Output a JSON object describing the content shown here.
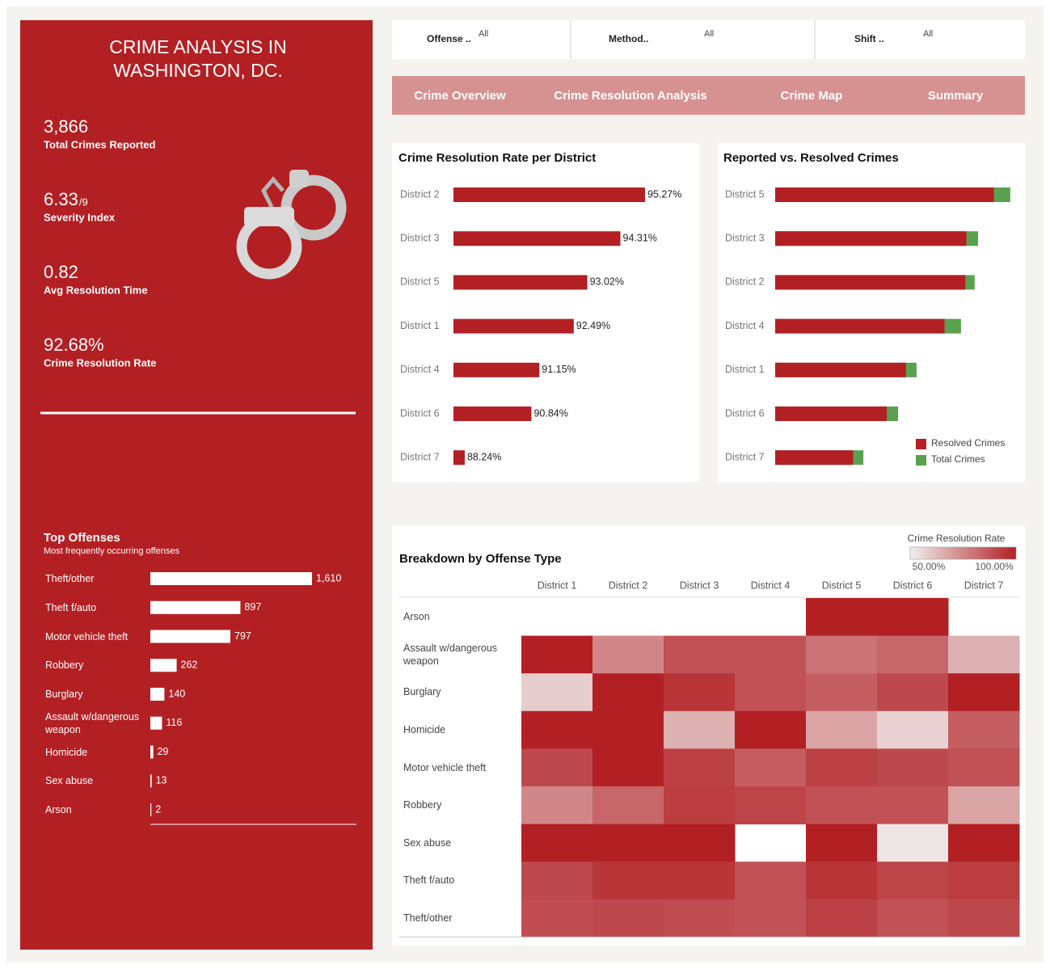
{
  "header": {
    "title_lines": [
      "CRIME ANALYSIS IN",
      "WASHINGTON, DC."
    ]
  },
  "kpis": [
    {
      "value": "3,866",
      "label": "Total Crimes Reported"
    },
    {
      "value": "6.33",
      "suffix": "/9",
      "label": "Severity Index"
    },
    {
      "value": "0.82",
      "label": "Avg Resolution Time"
    },
    {
      "value": "92.68%",
      "label": "Crime Resolution Rate"
    }
  ],
  "filters": [
    {
      "label": "Offense ..",
      "value": "All"
    },
    {
      "label": "Method..",
      "value": "All"
    },
    {
      "label": "Shift ..",
      "value": "All"
    }
  ],
  "tabs": [
    "Crime Overview",
    "Crime Resolution Analysis",
    "Crime Map",
    "Summary"
  ],
  "chart_data": [
    {
      "type": "hbar",
      "title": "Top Offenses",
      "subtitle": "Most frequently occurring offenses",
      "categories": [
        "Theft/other",
        "Theft f/auto",
        "Motor vehicle theft",
        "Robbery",
        "Burglary",
        "Assault w/dangerous weapon",
        "Homicide",
        "Sex abuse",
        "Arson"
      ],
      "values": [
        1610,
        897,
        797,
        262,
        140,
        116,
        29,
        13,
        2
      ],
      "value_labels": [
        "1,610",
        "897",
        "797",
        "262",
        "140",
        "116",
        "29",
        "13",
        "2"
      ],
      "color": "#ffffff"
    },
    {
      "type": "hbar",
      "title": "Crime Resolution Rate per District",
      "categories": [
        "District 2",
        "District 3",
        "District 5",
        "District 1",
        "District 4",
        "District 6",
        "District 7"
      ],
      "values": [
        95.27,
        94.31,
        93.02,
        92.49,
        91.15,
        90.84,
        88.24
      ],
      "value_labels": [
        "95.27%",
        "94.31%",
        "93.02%",
        "92.49%",
        "91.15%",
        "90.84%",
        "88.24%"
      ],
      "xlim": [
        87.8,
        96.5
      ],
      "color": "#b22024"
    },
    {
      "type": "overlay_hbar",
      "title": "Reported vs. Resolved Crimes",
      "categories": [
        "District 5",
        "District 3",
        "District 2",
        "District 4",
        "District 1",
        "District 6",
        "District 7"
      ],
      "series": [
        {
          "name": "Resolved Crimes",
          "color": "#b22024",
          "values": [
            719,
            629,
            625,
            557,
            430,
            367,
            256
          ]
        },
        {
          "name": "Total Crimes",
          "color": "#59a14f",
          "values": [
            773,
            667,
            656,
            611,
            465,
            404,
            290
          ]
        }
      ],
      "xlim": [
        0,
        800
      ],
      "legend": "bottom-right"
    },
    {
      "type": "heatmap",
      "title": "Breakdown by Offense Type",
      "categories": [
        "District 1",
        "District 2",
        "District 3",
        "District 4",
        "District 5",
        "District 6",
        "District 7"
      ],
      "rows": [
        "Arson",
        "Assault w/dangerous weapon",
        "Burglary",
        "Homicide",
        "Motor vehicle theft",
        "Robbery",
        "Sex abuse",
        "Theft f/auto",
        "Theft/other"
      ],
      "values": [
        [
          null,
          null,
          null,
          null,
          100,
          100,
          null
        ],
        [
          100,
          75,
          88,
          88,
          80,
          83,
          65
        ],
        [
          58,
          100,
          95,
          88,
          85,
          90,
          100
        ],
        [
          100,
          100,
          65,
          100,
          68,
          57,
          85
        ],
        [
          90,
          100,
          92,
          85,
          92,
          90,
          88
        ],
        [
          75,
          83,
          93,
          91,
          88,
          88,
          68
        ],
        [
          100,
          100,
          100,
          null,
          100,
          52,
          100
        ],
        [
          90,
          95,
          95,
          88,
          95,
          91,
          93
        ],
        [
          89,
          90,
          89,
          88,
          92,
          88,
          90
        ]
      ],
      "color_label": "Crime Resolution Rate",
      "clim": [
        50,
        100
      ],
      "cticks": [
        {
          "value": 50,
          "label": "50.00%"
        },
        {
          "value": 100,
          "label": "100.00%"
        }
      ],
      "colors": [
        "#f0eeee",
        "#b22024"
      ]
    }
  ]
}
